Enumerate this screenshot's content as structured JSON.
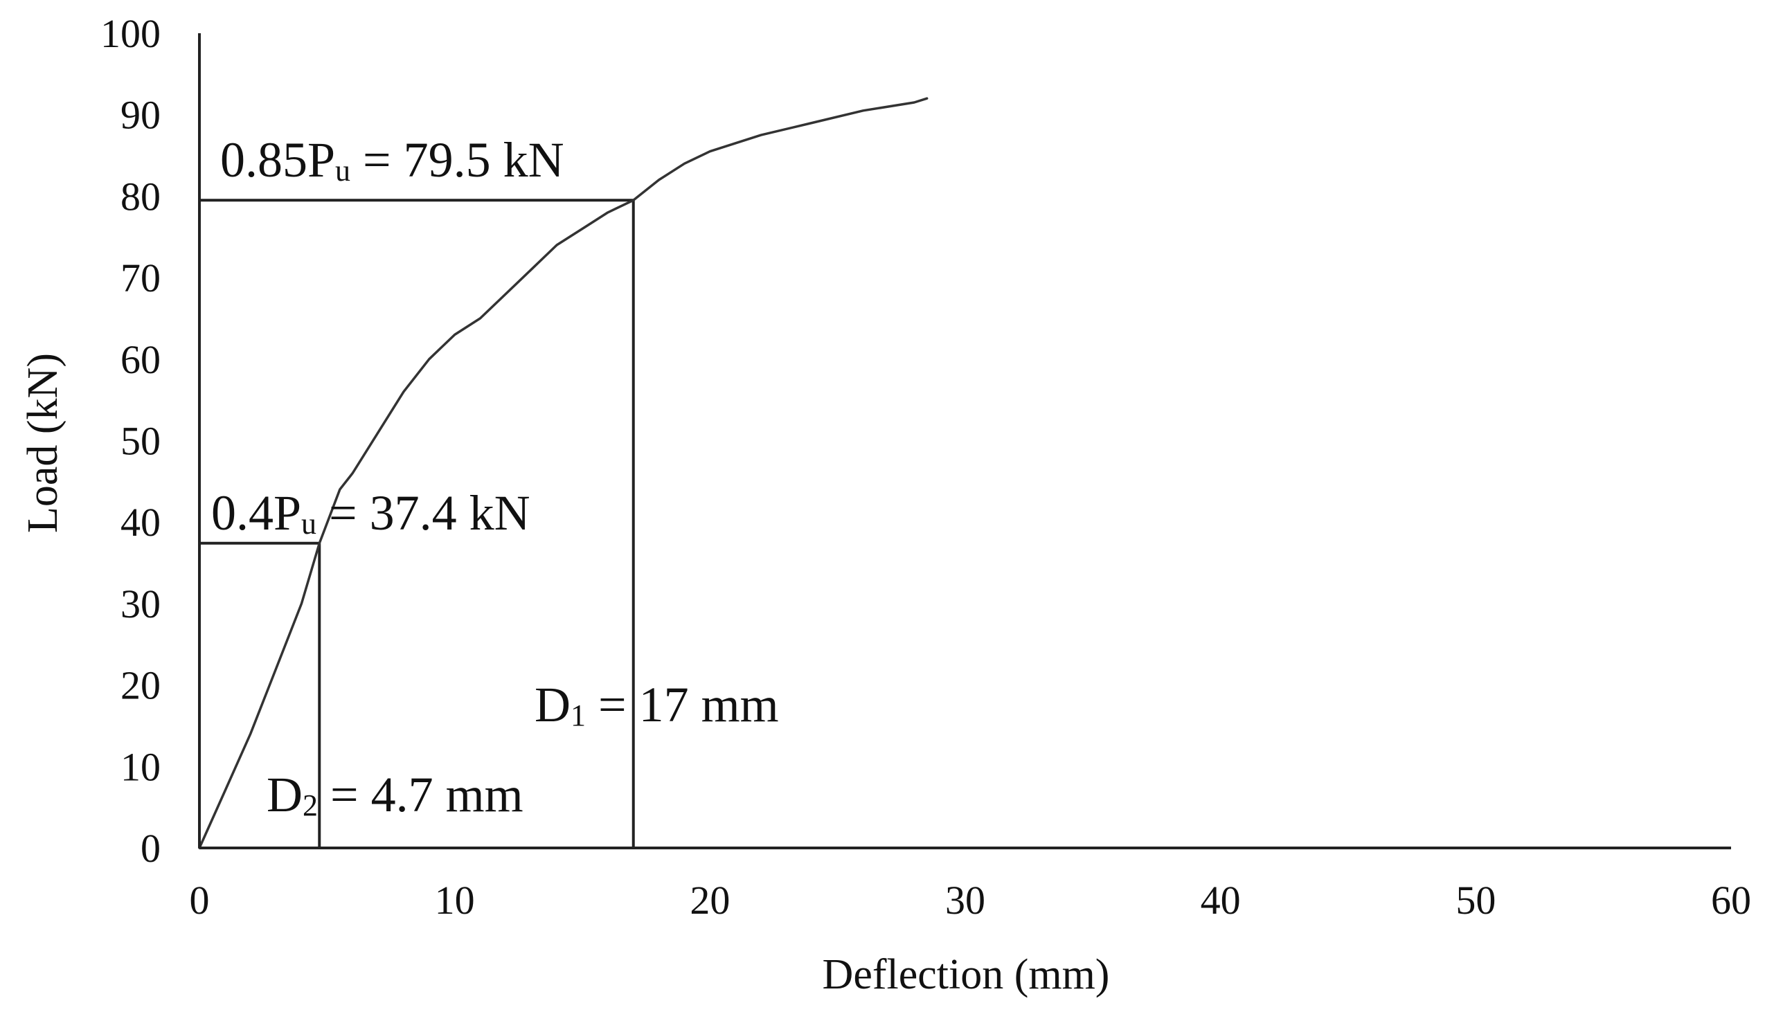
{
  "chart_data": {
    "type": "line",
    "xlabel": "Deflection (mm)",
    "ylabel": "Load (kN)",
    "xlim": [
      0,
      60
    ],
    "ylim": [
      0,
      100
    ],
    "x_ticks": [
      0,
      10,
      20,
      30,
      40,
      50,
      60
    ],
    "y_ticks": [
      0,
      10,
      20,
      30,
      40,
      50,
      60,
      70,
      80,
      90,
      100
    ],
    "grid": false,
    "legend": "none",
    "series": [
      {
        "color": "#333333",
        "x": [
          0,
          1,
          2,
          3,
          4,
          4.7,
          5.5,
          6,
          7,
          8,
          9,
          10,
          11,
          12,
          13,
          14,
          15,
          16,
          17,
          18,
          19,
          20,
          22,
          24,
          26,
          28,
          28.5
        ],
        "y": [
          0,
          7,
          14,
          22,
          30,
          37.4,
          44,
          46,
          51,
          56,
          60,
          63,
          65,
          68,
          71,
          74,
          76,
          78,
          79.5,
          82,
          84,
          85.5,
          87.5,
          89,
          90.5,
          91.5,
          92
        ]
      }
    ],
    "reference_lines": [
      {
        "load": 79.5,
        "deflection": 17
      },
      {
        "load": 37.4,
        "deflection": 4.7
      }
    ],
    "annotations": {
      "pu85": {
        "main": "0.85P",
        "sub": "u",
        "rest": " = 79.5 kN"
      },
      "pu40": {
        "main": "0.4P",
        "sub": "u",
        "rest": " = 37.4 kN"
      },
      "d1": {
        "main": "D",
        "sub": "1",
        "rest": " = 17 mm"
      },
      "d2": {
        "main": "D",
        "sub": "2",
        "rest": " = 4.7 mm"
      }
    }
  }
}
